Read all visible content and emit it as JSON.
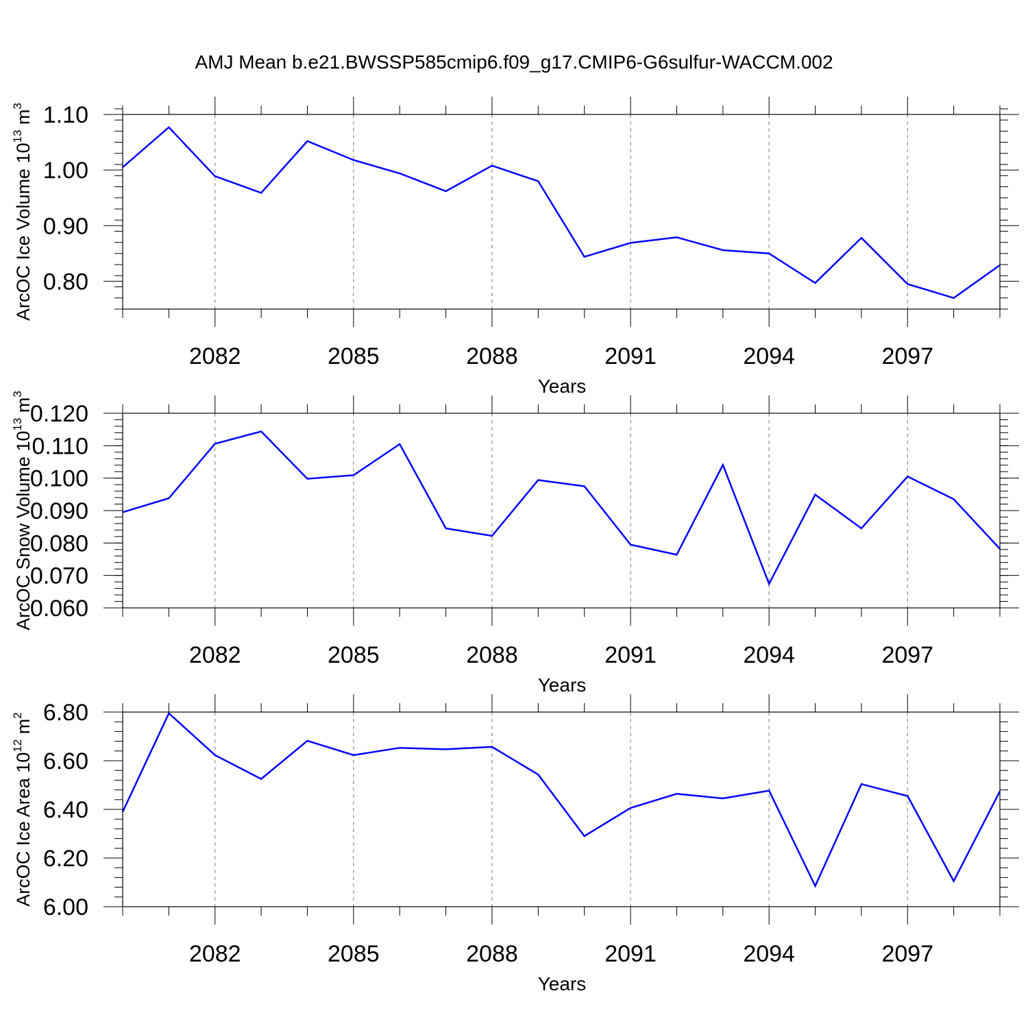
{
  "figure": {
    "title": "AMJ Mean b.e21.BWSSP585cmip6.f09_g17.CMIP6-G6sulfur-WACCM.002"
  },
  "chart_data": [
    {
      "type": "line",
      "xlabel": "Years",
      "ylabel": {
        "prefix": "ArcOC Ice Volume 10",
        "exp1": "13",
        "mid": " m",
        "exp2": "3"
      },
      "x": [
        2080,
        2081,
        2082,
        2083,
        2084,
        2085,
        2086,
        2087,
        2088,
        2089,
        2090,
        2091,
        2092,
        2093,
        2094,
        2095,
        2096,
        2097,
        2098,
        2099
      ],
      "xlim": [
        2080,
        2099
      ],
      "xtick_values": [
        2082,
        2085,
        2088,
        2091,
        2094,
        2097
      ],
      "xtick_labels": [
        "2082",
        "2085",
        "2088",
        "2091",
        "2094",
        "2097"
      ],
      "ylim": [
        0.75,
        1.1
      ],
      "ytick_values": [
        0.8,
        0.9,
        1.0,
        1.1
      ],
      "ytick_labels": [
        "0.80",
        "0.90",
        "1.00",
        "1.10"
      ],
      "y_minor_step": 0.02,
      "grid": "vertical dashed at major x ticks",
      "line_color": "#0000ff",
      "values": [
        1.005,
        1.077,
        0.989,
        0.959,
        1.052,
        1.018,
        0.994,
        0.962,
        1.008,
        0.98,
        0.844,
        0.869,
        0.879,
        0.856,
        0.85,
        0.797,
        0.878,
        0.795,
        0.77,
        0.829
      ]
    },
    {
      "type": "line",
      "xlabel": "Years",
      "ylabel": {
        "prefix": "ArcOC Snow Volume 10",
        "exp1": "13",
        "mid": " m",
        "exp2": "3"
      },
      "x": [
        2080,
        2081,
        2082,
        2083,
        2084,
        2085,
        2086,
        2087,
        2088,
        2089,
        2090,
        2091,
        2092,
        2093,
        2094,
        2095,
        2096,
        2097,
        2098,
        2099
      ],
      "xlim": [
        2080,
        2099
      ],
      "xtick_values": [
        2082,
        2085,
        2088,
        2091,
        2094,
        2097
      ],
      "xtick_labels": [
        "2082",
        "2085",
        "2088",
        "2091",
        "2094",
        "2097"
      ],
      "ylim": [
        0.06,
        0.12
      ],
      "ytick_values": [
        0.06,
        0.07,
        0.08,
        0.09,
        0.1,
        0.11,
        0.12
      ],
      "ytick_labels": [
        "0.060",
        "0.070",
        "0.080",
        "0.090",
        "0.100",
        "0.110",
        "0.120"
      ],
      "y_minor_step": 0.002,
      "grid": "vertical dashed at major x ticks",
      "line_color": "#0000ff",
      "values": [
        0.0895,
        0.0938,
        0.1106,
        0.1144,
        0.0998,
        0.1009,
        0.1105,
        0.0845,
        0.0822,
        0.0994,
        0.0975,
        0.0795,
        0.0764,
        0.1041,
        0.0674,
        0.0949,
        0.0845,
        0.1005,
        0.0935,
        0.0782
      ]
    },
    {
      "type": "line",
      "xlabel": "Years",
      "ylabel": {
        "prefix": "ArcOC Ice Area 10",
        "exp1": "12",
        "mid": " m",
        "exp2": "2"
      },
      "x": [
        2080,
        2081,
        2082,
        2083,
        2084,
        2085,
        2086,
        2087,
        2088,
        2089,
        2090,
        2091,
        2092,
        2093,
        2094,
        2095,
        2096,
        2097,
        2098,
        2099
      ],
      "xlim": [
        2080,
        2099
      ],
      "xtick_values": [
        2082,
        2085,
        2088,
        2091,
        2094,
        2097
      ],
      "xtick_labels": [
        "2082",
        "2085",
        "2088",
        "2091",
        "2094",
        "2097"
      ],
      "ylim": [
        6.0,
        6.8
      ],
      "ytick_values": [
        6.0,
        6.2,
        6.4,
        6.6,
        6.8
      ],
      "ytick_labels": [
        "6.00",
        "6.20",
        "6.40",
        "6.60",
        "6.80"
      ],
      "y_minor_step": 0.04,
      "grid": "vertical dashed at major x ticks",
      "line_color": "#0000ff",
      "values": [
        6.39,
        6.795,
        6.623,
        6.525,
        6.682,
        6.623,
        6.653,
        6.647,
        6.657,
        6.543,
        6.29,
        6.406,
        6.464,
        6.445,
        6.477,
        6.085,
        6.504,
        6.455,
        6.105,
        6.475
      ]
    }
  ]
}
